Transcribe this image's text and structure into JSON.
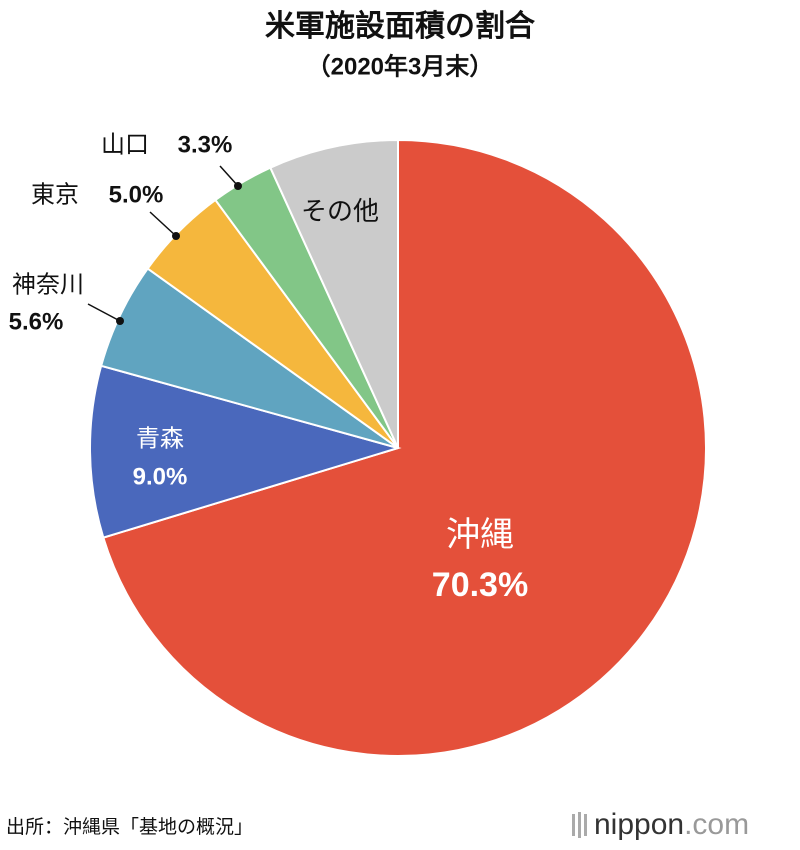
{
  "chart_data": {
    "type": "pie",
    "title": "米軍施設面積の割合",
    "subtitle": "（2020年3月末）",
    "categories": [
      "沖縄",
      "青森",
      "神奈川",
      "東京",
      "山口",
      "その他"
    ],
    "values": [
      70.3,
      9.0,
      5.6,
      5.0,
      3.3,
      6.8
    ],
    "value_labels": [
      "70.3%",
      "9.0%",
      "5.6%",
      "5.0%",
      "3.3%",
      null
    ],
    "colors": [
      "#e4503a",
      "#4a68bc",
      "#60a4c0",
      "#f5b73d",
      "#82c687",
      "#cbcbcb"
    ],
    "source": "出所：沖縄県「基地の概況」",
    "logo": {
      "main": "nippon",
      "suffix": ".com"
    }
  }
}
